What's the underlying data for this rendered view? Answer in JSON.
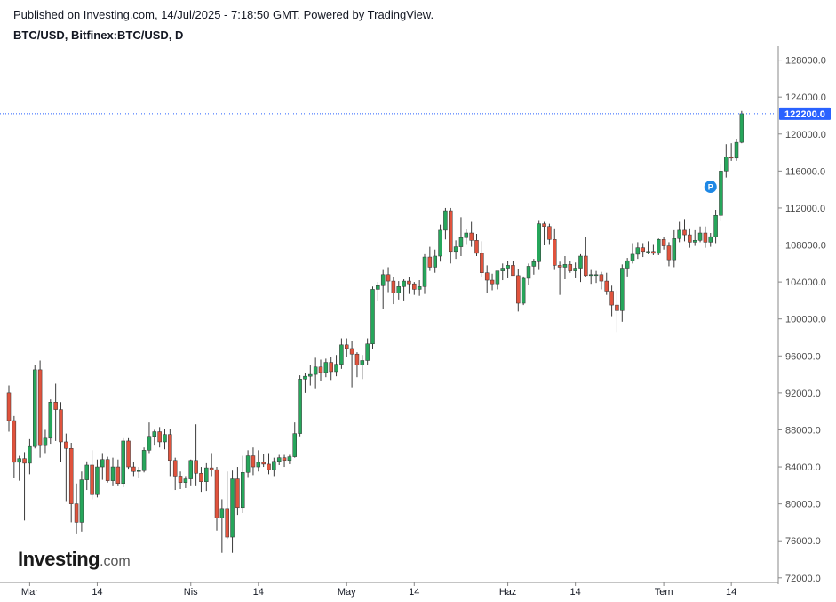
{
  "header": {
    "published": "Published on Investing.com, 14/Jul/2025 - 7:18:50 GMT, Powered by TradingView.",
    "symbol": "BTC/USD, Bitfinex:BTC/USD, D"
  },
  "logo": {
    "main": "Investing",
    "suffix": ".com"
  },
  "colors": {
    "up": "#26a65b",
    "down": "#e0533d",
    "wick": "#3a3a3a",
    "price_line": "#2962ff",
    "price_label_bg": "#2962ff",
    "p_marker": "#1e88e5"
  },
  "chart_data": {
    "type": "candlestick",
    "title": "",
    "xlabel": "",
    "ylabel": "",
    "ylim": [
      71500,
      129500
    ],
    "y_ticks": [
      "72000.0",
      "76000.0",
      "80000.0",
      "84000.0",
      "88000.0",
      "92000.0",
      "96000.0",
      "100000.0",
      "104000.0",
      "108000.0",
      "112000.0",
      "116000.0",
      "120000.0",
      "124000.0",
      "128000.0"
    ],
    "x_month_labels": [
      {
        "index": 4,
        "label": "Mar"
      },
      {
        "index": 17,
        "label": "14"
      },
      {
        "index": 35,
        "label": "Nis"
      },
      {
        "index": 48,
        "label": "14"
      },
      {
        "index": 65,
        "label": "May"
      },
      {
        "index": 78,
        "label": "14"
      },
      {
        "index": 96,
        "label": "Haz"
      },
      {
        "index": 109,
        "label": "14"
      },
      {
        "index": 126,
        "label": "Tem"
      },
      {
        "index": 139,
        "label": "14"
      }
    ],
    "current_price_label": "122200.0",
    "current_price": 122200,
    "marker": {
      "index": 135,
      "price": 114300,
      "label": "P"
    },
    "candles": [
      [
        92000,
        92800,
        87800,
        89000
      ],
      [
        89000,
        89500,
        82800,
        84500
      ],
      [
        84500,
        85200,
        82500,
        84900
      ],
      [
        84900,
        85600,
        78200,
        84400
      ],
      [
        84400,
        87000,
        83200,
        86200
      ],
      [
        86200,
        95000,
        86000,
        94500
      ],
      [
        94500,
        95500,
        85000,
        86300
      ],
      [
        86300,
        88000,
        85500,
        87100
      ],
      [
        87100,
        91300,
        86500,
        91000
      ],
      [
        91000,
        93000,
        86800,
        90200
      ],
      [
        90200,
        91000,
        84500,
        86700
      ],
      [
        86700,
        87600,
        80300,
        86000
      ],
      [
        86000,
        86600,
        78000,
        80000
      ],
      [
        80000,
        82200,
        76800,
        78000
      ],
      [
        78000,
        83500,
        77000,
        82600
      ],
      [
        82600,
        84600,
        81500,
        84200
      ],
      [
        84200,
        85800,
        80500,
        81000
      ],
      [
        81000,
        84800,
        80700,
        84000
      ],
      [
        84000,
        85500,
        82600,
        84800
      ],
      [
        84800,
        85100,
        82300,
        82500
      ],
      [
        82500,
        85000,
        82000,
        84000
      ],
      [
        84000,
        84800,
        82000,
        82200
      ],
      [
        82200,
        87100,
        81800,
        86800
      ],
      [
        86800,
        87100,
        83800,
        84000
      ],
      [
        84000,
        84500,
        83000,
        83500
      ],
      [
        83500,
        84000,
        82800,
        83600
      ],
      [
        83600,
        86100,
        83400,
        85800
      ],
      [
        85800,
        88800,
        85500,
        87300
      ],
      [
        87300,
        88000,
        86300,
        87800
      ],
      [
        87800,
        88300,
        86100,
        86700
      ],
      [
        86700,
        88100,
        85900,
        87500
      ],
      [
        87500,
        88100,
        83000,
        84700
      ],
      [
        84700,
        85000,
        81500,
        83000
      ],
      [
        83000,
        83500,
        81600,
        82300
      ],
      [
        82300,
        83000,
        81700,
        82700
      ],
      [
        82700,
        84800,
        82000,
        84700
      ],
      [
        84700,
        88600,
        82000,
        83300
      ],
      [
        83300,
        84000,
        81300,
        82400
      ],
      [
        82400,
        84400,
        81400,
        83900
      ],
      [
        83900,
        85500,
        83000,
        83700
      ],
      [
        83700,
        84000,
        77100,
        78500
      ],
      [
        78500,
        80500,
        74700,
        79500
      ],
      [
        79500,
        83500,
        76200,
        76400
      ],
      [
        76400,
        83600,
        74700,
        82700
      ],
      [
        82700,
        84000,
        78800,
        79600
      ],
      [
        79600,
        85200,
        79000,
        83400
      ],
      [
        83400,
        85800,
        82900,
        85200
      ],
      [
        85200,
        86100,
        83100,
        84000
      ],
      [
        84000,
        85800,
        83500,
        84500
      ],
      [
        84500,
        85400,
        84000,
        84300
      ],
      [
        84300,
        85500,
        83200,
        83700
      ],
      [
        83700,
        85000,
        83000,
        84600
      ],
      [
        84600,
        85300,
        84200,
        85000
      ],
      [
        85000,
        85300,
        84000,
        84700
      ],
      [
        84700,
        85300,
        84300,
        85100
      ],
      [
        85100,
        88800,
        85000,
        87600
      ],
      [
        87600,
        93900,
        87300,
        93500
      ],
      [
        93500,
        94200,
        92000,
        93800
      ],
      [
        93800,
        95000,
        92800,
        94000
      ],
      [
        94000,
        95800,
        92500,
        94800
      ],
      [
        94800,
        95600,
        93300,
        94200
      ],
      [
        94200,
        95700,
        93700,
        95300
      ],
      [
        95300,
        95900,
        93400,
        94300
      ],
      [
        94300,
        96100,
        93800,
        95100
      ],
      [
        95100,
        97900,
        94600,
        97200
      ],
      [
        97200,
        97900,
        95900,
        96800
      ],
      [
        96800,
        97600,
        92600,
        96200
      ],
      [
        96200,
        96400,
        93700,
        95000
      ],
      [
        95000,
        96100,
        93500,
        95500
      ],
      [
        95500,
        97900,
        95000,
        97300
      ],
      [
        97300,
        103500,
        96800,
        103200
      ],
      [
        103200,
        104000,
        101900,
        103600
      ],
      [
        103600,
        105300,
        101100,
        104800
      ],
      [
        104800,
        105600,
        102900,
        104100
      ],
      [
        104100,
        104500,
        101600,
        102800
      ],
      [
        102800,
        104100,
        102100,
        103500
      ],
      [
        103500,
        104300,
        102000,
        104100
      ],
      [
        104100,
        104500,
        102700,
        103800
      ],
      [
        103800,
        104000,
        102600,
        103200
      ],
      [
        103200,
        104200,
        102500,
        103500
      ],
      [
        103500,
        107000,
        102700,
        106700
      ],
      [
        106700,
        107800,
        105200,
        105600
      ],
      [
        105600,
        107500,
        105000,
        106800
      ],
      [
        106800,
        110200,
        106200,
        109600
      ],
      [
        109600,
        112000,
        108600,
        111700
      ],
      [
        111700,
        112000,
        106000,
        107300
      ],
      [
        107300,
        108500,
        106500,
        107800
      ],
      [
        107800,
        111000,
        106800,
        108800
      ],
      [
        108800,
        109700,
        108100,
        109300
      ],
      [
        109300,
        110500,
        107800,
        108500
      ],
      [
        108500,
        109200,
        106800,
        107100
      ],
      [
        107100,
        108400,
        104500,
        105000
      ],
      [
        105000,
        105800,
        102800,
        104200
      ],
      [
        104200,
        104900,
        103100,
        103800
      ],
      [
        103800,
        105100,
        103200,
        105200
      ],
      [
        105200,
        106000,
        104200,
        105500
      ],
      [
        105500,
        106300,
        104400,
        105800
      ],
      [
        105800,
        106300,
        104900,
        104700
      ],
      [
        104700,
        105400,
        100800,
        101700
      ],
      [
        101700,
        104600,
        101500,
        104400
      ],
      [
        104400,
        106000,
        103700,
        105700
      ],
      [
        105700,
        106500,
        104800,
        106200
      ],
      [
        106200,
        110700,
        105300,
        110300
      ],
      [
        110300,
        110500,
        108000,
        110000
      ],
      [
        110000,
        110300,
        108100,
        108600
      ],
      [
        108600,
        109800,
        105300,
        105800
      ],
      [
        105800,
        106200,
        102600,
        105600
      ],
      [
        105600,
        106800,
        104300,
        105900
      ],
      [
        105900,
        106300,
        105000,
        105200
      ],
      [
        105200,
        106100,
        104400,
        105500
      ],
      [
        105500,
        107000,
        104000,
        106800
      ],
      [
        106800,
        108900,
        104600,
        104700
      ],
      [
        104700,
        105300,
        103800,
        104800
      ],
      [
        104800,
        105200,
        103900,
        104800
      ],
      [
        104800,
        105100,
        103200,
        104100
      ],
      [
        104100,
        105000,
        102600,
        103000
      ],
      [
        103000,
        103600,
        100300,
        101500
      ],
      [
        101500,
        103100,
        98600,
        100900
      ],
      [
        100900,
        105900,
        99700,
        105500
      ],
      [
        105500,
        106600,
        104600,
        106300
      ],
      [
        106300,
        108200,
        106000,
        107000
      ],
      [
        107000,
        108300,
        106500,
        107700
      ],
      [
        107700,
        108200,
        106700,
        107300
      ],
      [
        107300,
        108400,
        107000,
        107300
      ],
      [
        107300,
        108100,
        106900,
        107100
      ],
      [
        107100,
        108700,
        106900,
        108600
      ],
      [
        108600,
        108900,
        107500,
        107900
      ],
      [
        107900,
        108300,
        105700,
        106400
      ],
      [
        106400,
        109600,
        105600,
        108700
      ],
      [
        108700,
        110500,
        108300,
        109600
      ],
      [
        109600,
        110800,
        108400,
        109100
      ],
      [
        109100,
        109800,
        107700,
        108300
      ],
      [
        108300,
        109600,
        107900,
        108500
      ],
      [
        108500,
        110000,
        108300,
        109300
      ],
      [
        109300,
        110000,
        107700,
        108300
      ],
      [
        108300,
        109300,
        107800,
        108900
      ],
      [
        108900,
        111800,
        108200,
        111200
      ],
      [
        111200,
        116800,
        110600,
        116000
      ],
      [
        116000,
        118900,
        115300,
        117500
      ],
      [
        117500,
        119000,
        117100,
        117400
      ],
      [
        117400,
        119500,
        117100,
        119100
      ],
      [
        119100,
        122500,
        119000,
        122200
      ]
    ]
  }
}
